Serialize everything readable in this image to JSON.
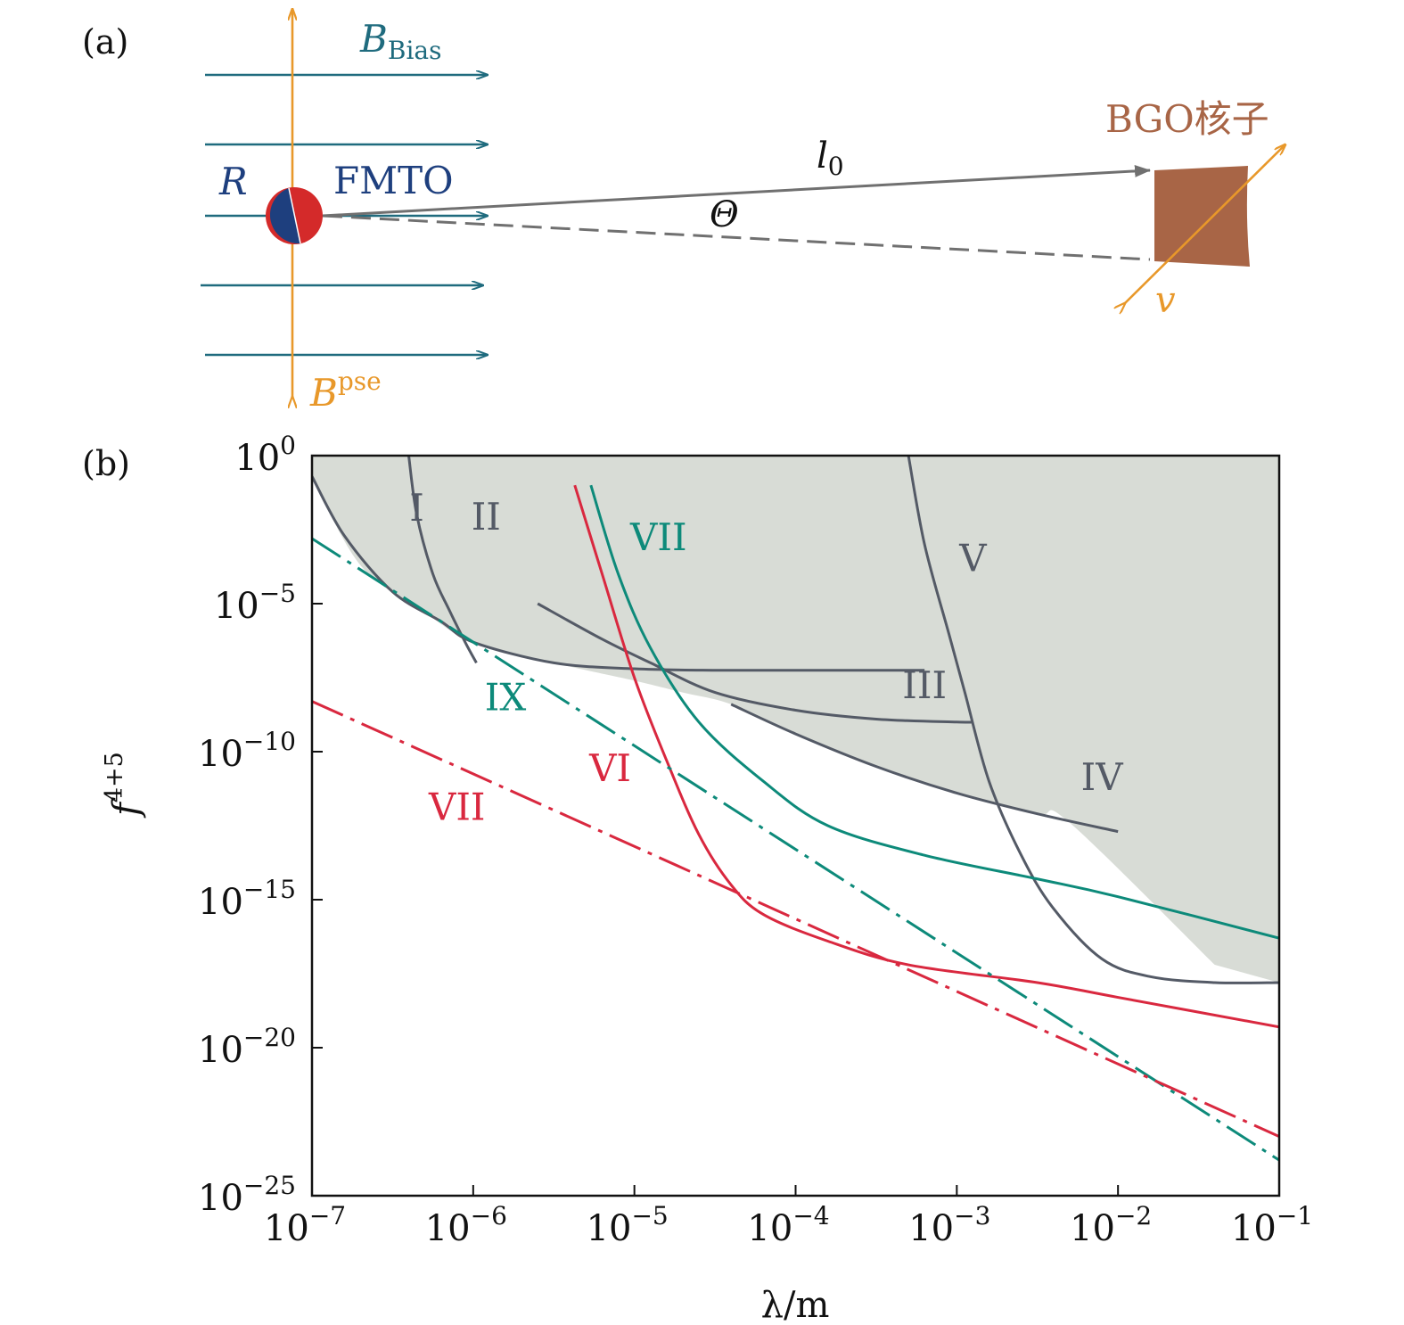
{
  "colors": {
    "bias": "#1f6b7e",
    "pse": "#e8982a",
    "arrow_gray": "#707070",
    "fmto_red": "#d42a2a",
    "fmto_blue": "#1e3f7e",
    "bgo": "#a86546",
    "region": "#d8dcd6",
    "gray_curve": "#545a66",
    "teal": "#0d8a7a",
    "red": "#d9283f",
    "axis": "#111111"
  },
  "panel_a": {
    "label": "(a)",
    "bias_label": "B",
    "bias_sub": "Bias",
    "pse_label": "B",
    "pse_sup": "pse",
    "r_label": "R",
    "fmto_label": "FMTO",
    "l0_label": "l",
    "l0_sub": "0",
    "theta_label": "Θ",
    "bgo_label": "BGO核子",
    "v_label": "v"
  },
  "panel_b": {
    "label": "(b)",
    "ylabel_base": "f",
    "ylabel_sup": "4+5",
    "xlabel": "λ/m",
    "x_ticks": [
      {
        "exp": -7,
        "base": "10",
        "sup": "−7"
      },
      {
        "exp": -6,
        "base": "10",
        "sup": "−6"
      },
      {
        "exp": -5,
        "base": "10",
        "sup": "−5"
      },
      {
        "exp": -4,
        "base": "10",
        "sup": "−4"
      },
      {
        "exp": -3,
        "base": "10",
        "sup": "−3"
      },
      {
        "exp": -2,
        "base": "10",
        "sup": "−2"
      },
      {
        "exp": -1,
        "base": "10",
        "sup": "−1"
      }
    ],
    "y_ticks": [
      {
        "exp": 0,
        "base": "10",
        "sup": "0"
      },
      {
        "exp": -5,
        "base": "10",
        "sup": "−5"
      },
      {
        "exp": -10,
        "base": "10",
        "sup": "−10"
      },
      {
        "exp": -15,
        "base": "10",
        "sup": "−15"
      },
      {
        "exp": -20,
        "base": "10",
        "sup": "−20"
      },
      {
        "exp": -25,
        "base": "10",
        "sup": "−25"
      }
    ]
  },
  "chart_data": {
    "type": "line",
    "x_scale": "log",
    "y_scale": "log",
    "xlabel": "λ/m",
    "ylabel": "f^{4+5}",
    "xlim_log10": [
      -7,
      -1
    ],
    "ylim_log10": [
      -25,
      0
    ],
    "excluded_region_log10": [
      [
        -7,
        -0.7
      ],
      [
        -6.7,
        -3.7
      ],
      [
        -6.3,
        -5.3
      ],
      [
        -6,
        -6.3
      ],
      [
        -5.5,
        -7.0
      ],
      [
        -5,
        -7.6
      ],
      [
        -4.7,
        -8.0
      ],
      [
        -4.4,
        -8.4
      ],
      [
        -4,
        -9.4
      ],
      [
        -3.5,
        -10.5
      ],
      [
        -3,
        -11.4
      ],
      [
        -2.5,
        -12.1
      ],
      [
        -2.3,
        -12.4
      ],
      [
        -1.4,
        -17.2
      ],
      [
        -1,
        -17.8
      ],
      [
        -1,
        0
      ],
      [
        -7,
        0
      ]
    ],
    "series": [
      {
        "name": "I",
        "color": "gray",
        "style": "solid",
        "points_log10": [
          [
            -7,
            -0.7
          ],
          [
            -6.8,
            -2.7
          ],
          [
            -6.5,
            -4.6
          ],
          [
            -6.2,
            -5.6
          ],
          [
            -6,
            -6.3
          ],
          [
            -5.5,
            -7.0
          ],
          [
            -5,
            -7.2
          ],
          [
            -4.5,
            -7.25
          ],
          [
            -3.8,
            -7.25
          ],
          [
            -3.2,
            -7.25
          ]
        ]
      },
      {
        "name": "II",
        "color": "gray",
        "style": "solid",
        "points_log10": [
          [
            -6.4,
            0
          ],
          [
            -6.35,
            -2.0
          ],
          [
            -6.25,
            -4.0
          ],
          [
            -6.15,
            -5.2
          ],
          [
            -6.05,
            -6.3
          ],
          [
            -5.98,
            -7.0
          ]
        ]
      },
      {
        "name": "III",
        "color": "gray",
        "style": "solid",
        "points_log10": [
          [
            -5.6,
            -5.0
          ],
          [
            -5.2,
            -6.2
          ],
          [
            -4.9,
            -7.0
          ],
          [
            -4.5,
            -8.0
          ],
          [
            -4.0,
            -8.6
          ],
          [
            -3.5,
            -8.9
          ],
          [
            -3.0,
            -9.0
          ],
          [
            -2.9,
            -9.0
          ]
        ]
      },
      {
        "name": "IV",
        "color": "gray",
        "style": "solid",
        "points_log10": [
          [
            -4.4,
            -8.4
          ],
          [
            -4.0,
            -9.4
          ],
          [
            -3.5,
            -10.5
          ],
          [
            -3.0,
            -11.4
          ],
          [
            -2.5,
            -12.1
          ],
          [
            -2.0,
            -12.7
          ]
        ]
      },
      {
        "name": "V",
        "color": "gray",
        "style": "solid",
        "points_log10": [
          [
            -3.3,
            0
          ],
          [
            -3.2,
            -3.0
          ],
          [
            -3.05,
            -6.0
          ],
          [
            -2.95,
            -8.0
          ],
          [
            -2.8,
            -11.0
          ],
          [
            -2.6,
            -13.5
          ],
          [
            -2.4,
            -15.3
          ],
          [
            -2.1,
            -17.0
          ],
          [
            -1.8,
            -17.6
          ],
          [
            -1.4,
            -17.8
          ],
          [
            -1,
            -17.8
          ]
        ]
      },
      {
        "name": "VII (teal)",
        "color": "teal",
        "style": "solid",
        "points_log10": [
          [
            -5.27,
            -1.0
          ],
          [
            -5.1,
            -4.0
          ],
          [
            -4.9,
            -6.5
          ],
          [
            -4.6,
            -9.0
          ],
          [
            -4.2,
            -11.0
          ],
          [
            -3.8,
            -12.5
          ],
          [
            -3.2,
            -13.5
          ],
          [
            -2.5,
            -14.3
          ],
          [
            -2.0,
            -14.9
          ],
          [
            -1,
            -16.3
          ]
        ]
      },
      {
        "name": "VI",
        "color": "red",
        "style": "solid",
        "points_log10": [
          [
            -5.37,
            -1.0
          ],
          [
            -5.2,
            -4.0
          ],
          [
            -5.0,
            -7.5
          ],
          [
            -4.8,
            -10.3
          ],
          [
            -4.6,
            -12.8
          ],
          [
            -4.4,
            -14.5
          ],
          [
            -4.2,
            -15.5
          ],
          [
            -3.8,
            -16.4
          ],
          [
            -3.3,
            -17.2
          ],
          [
            -2.5,
            -17.8
          ],
          [
            -2.0,
            -18.3
          ],
          [
            -1,
            -19.3
          ]
        ]
      },
      {
        "name": "IX",
        "color": "teal",
        "style": "dash-dot",
        "points_log10": [
          [
            -7,
            -2.8
          ],
          [
            -1,
            -23.8
          ]
        ]
      },
      {
        "name": "VII (red)",
        "color": "red",
        "style": "dash-dot",
        "points_log10": [
          [
            -7,
            -8.3
          ],
          [
            -1,
            -23.0
          ]
        ]
      }
    ],
    "annotations": [
      {
        "text": "I",
        "at_log10": [
          -6.35,
          -2.2
        ],
        "color": "gray"
      },
      {
        "text": "II",
        "at_log10": [
          -5.92,
          -2.5
        ],
        "color": "gray"
      },
      {
        "text": "III",
        "at_log10": [
          -3.2,
          -8.2
        ],
        "color": "gray"
      },
      {
        "text": "IV",
        "at_log10": [
          -2.1,
          -11.3
        ],
        "color": "gray"
      },
      {
        "text": "V",
        "at_log10": [
          -2.9,
          -3.9
        ],
        "color": "gray"
      },
      {
        "text": "VI",
        "at_log10": [
          -5.15,
          -11.0
        ],
        "color": "red"
      },
      {
        "text": "VII",
        "at_log10": [
          -4.85,
          -3.2
        ],
        "color": "teal"
      },
      {
        "text": "VII",
        "at_log10": [
          -6.1,
          -12.3
        ],
        "color": "red"
      },
      {
        "text": "IX",
        "at_log10": [
          -5.8,
          -8.6
        ],
        "color": "teal"
      }
    ]
  }
}
